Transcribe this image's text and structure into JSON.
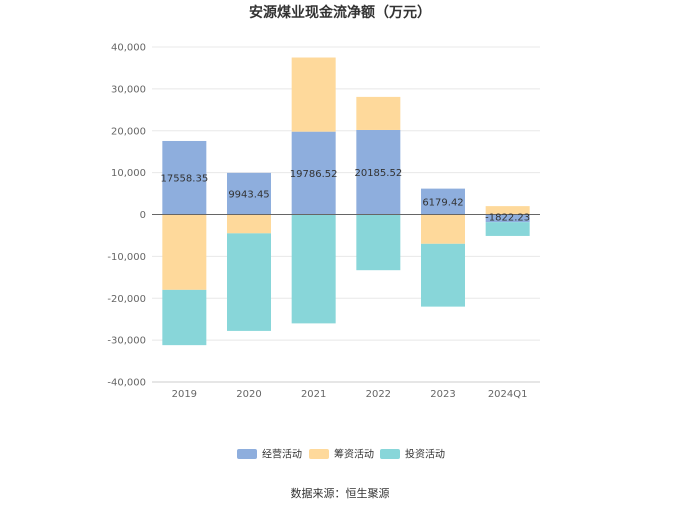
{
  "chart_data": {
    "type": "bar",
    "stacked": true,
    "title": "安源煤业现金流净额（万元）",
    "categories": [
      "2019",
      "2020",
      "2021",
      "2022",
      "2023",
      "2024Q1"
    ],
    "ylim": [
      -40000,
      40000
    ],
    "yticks": [
      40000,
      30000,
      20000,
      10000,
      0,
      -10000,
      -20000,
      -30000,
      -40000
    ],
    "ytick_labels": [
      "40,000",
      "30,000",
      "20,000",
      "10,000",
      "0",
      "-10,000",
      "-20,000",
      "-30,000",
      "-40,000"
    ],
    "grid": true,
    "legend_position": "bottom",
    "series": [
      {
        "name": "经营活动",
        "color": "#8eaedd",
        "values": [
          17558.35,
          9943.45,
          19786.52,
          20185.52,
          6179.42,
          -1822.23
        ]
      },
      {
        "name": "筹资活动",
        "color": "#fed99b",
        "values": [
          -18000,
          -4500,
          17700,
          7900,
          -7000,
          2000
        ]
      },
      {
        "name": "投资活动",
        "color": "#88d6d9",
        "values": [
          -13200,
          -23300,
          -26000,
          -13300,
          -15000,
          -3300
        ]
      }
    ],
    "data_labels": [
      "17558.35",
      "9943.45",
      "19786.52",
      "20185.52",
      "6179.42",
      "-1822.23"
    ],
    "source_text": "数据来源：恒生聚源"
  }
}
